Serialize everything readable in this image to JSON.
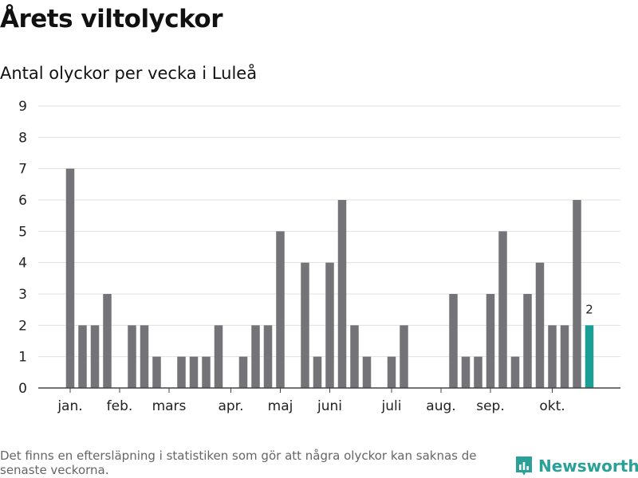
{
  "title": "Årets viltolyckor",
  "subtitle": "Antal olyckor per vecka i Luleå",
  "footnote": "Det finns en eftersläpning i statistiken som gör att några olyckor kan saknas de senaste veckorna.",
  "brand": "Newsworthy",
  "colors": {
    "bar": "#747378",
    "highlight": "#1b9e96",
    "grid": "#e0e0e0",
    "axis": "#444444",
    "text": "#222222"
  },
  "chart_data": {
    "type": "bar",
    "title": "Årets viltolyckor",
    "subtitle": "Antal olyckor per vecka i Luleå",
    "xlabel": "",
    "ylabel": "",
    "ylim": [
      0,
      9
    ],
    "yticks": [
      0,
      1,
      2,
      3,
      4,
      5,
      6,
      7,
      8,
      9
    ],
    "grid": true,
    "legend": "none",
    "weeks": [
      1,
      2,
      3,
      4,
      5,
      6,
      7,
      8,
      9,
      10,
      11,
      12,
      13,
      14,
      15,
      16,
      17,
      18,
      19,
      20,
      21,
      22,
      23,
      24,
      25,
      26,
      27,
      28,
      29,
      30,
      31,
      32,
      33,
      34,
      35,
      36,
      37,
      38,
      39,
      40,
      41,
      42,
      43
    ],
    "values": [
      7,
      2,
      2,
      3,
      0,
      2,
      2,
      1,
      0,
      1,
      1,
      1,
      2,
      0,
      1,
      2,
      2,
      5,
      0,
      4,
      1,
      4,
      6,
      2,
      1,
      0,
      1,
      2,
      0,
      0,
      0,
      3,
      1,
      1,
      3,
      5,
      1,
      3,
      4,
      2,
      2,
      6,
      2
    ],
    "highlight_last": true,
    "data_labels": [
      {
        "week": 43,
        "text": "2"
      }
    ],
    "month_labels": [
      {
        "label": "jan.",
        "week": 1
      },
      {
        "label": "feb.",
        "week": 5
      },
      {
        "label": "mars",
        "week": 9
      },
      {
        "label": "apr.",
        "week": 14
      },
      {
        "label": "maj",
        "week": 18
      },
      {
        "label": "juni",
        "week": 22
      },
      {
        "label": "juli",
        "week": 27
      },
      {
        "label": "aug.",
        "week": 31
      },
      {
        "label": "sep.",
        "week": 35
      },
      {
        "label": "okt.",
        "week": 40
      }
    ]
  }
}
